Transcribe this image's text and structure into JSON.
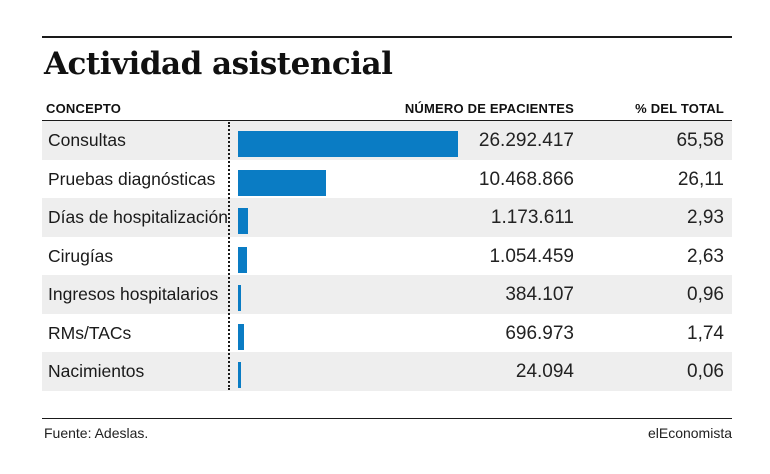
{
  "header": {
    "title": "Actividad asistencial",
    "col_concepto": "CONCEPTO",
    "col_numero": "NÚMERO DE EPACIENTES",
    "col_pct": "% DEL TOTAL"
  },
  "footer": {
    "source": "Fuente: Adeslas.",
    "brand": "elEconomista"
  },
  "colors": {
    "bar": "#0a7cc4",
    "shade": "#eeeeee"
  },
  "chart_data": {
    "type": "bar",
    "title": "Actividad asistencial",
    "categories": [
      "Consultas",
      "Pruebas diagnósticas",
      "Días de hospitalización",
      "Cirugías",
      "Ingresos hospitalarios",
      "RMs/TACs",
      "Nacimientos"
    ],
    "values": [
      26292417,
      10468866,
      1173611,
      1054459,
      384107,
      696973,
      24094
    ],
    "value_labels": [
      "26.292.417",
      "10.468.866",
      "1.173.611",
      "1.054.459",
      "384.107",
      "696.973",
      "24.094"
    ],
    "percent_labels": [
      "65,58",
      "26,11",
      "2,93",
      "2,63",
      "0,96",
      "1,74",
      "0,06"
    ],
    "orientation": "horizontal"
  }
}
